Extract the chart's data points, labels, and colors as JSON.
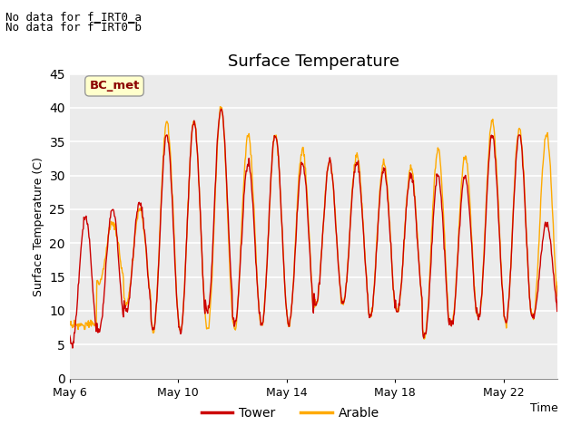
{
  "title": "Surface Temperature",
  "ylabel": "Surface Temperature (C)",
  "xlabel": "Time",
  "annotations": [
    "No data for f_IRT0_a",
    "No data for f̅IRT0̅b"
  ],
  "bc_met_label": "BC_met",
  "legend_entries": [
    "Tower",
    "Arable"
  ],
  "line_colors": [
    "#cc0000",
    "#ffaa00"
  ],
  "ylim": [
    0,
    45
  ],
  "x_tick_labels": [
    "May 6",
    "May 10",
    "May 14",
    "May 18",
    "May 22"
  ],
  "x_tick_positions": [
    0,
    4,
    8,
    12,
    16
  ],
  "plot_bg": "#ebebeb",
  "grid_color": "#ffffff",
  "title_fontsize": 13,
  "label_fontsize": 9,
  "tick_fontsize": 9,
  "annotation_fontsize": 9,
  "day_maxima_tower": [
    24,
    25,
    26,
    36,
    38,
    40,
    32,
    36,
    32,
    32,
    32,
    31,
    30,
    30,
    30,
    36,
    36,
    23,
    14
  ],
  "day_minima_tower": [
    5,
    7,
    10,
    7,
    7,
    10,
    8,
    8,
    8,
    11,
    11,
    9,
    10,
    6,
    8,
    9,
    8,
    9,
    14
  ],
  "day_maxima_arable": [
    8,
    23,
    25,
    38,
    38,
    40,
    36,
    36,
    34,
    32,
    33,
    32,
    31,
    34,
    33,
    38,
    37,
    36,
    14
  ],
  "day_minima_arable": [
    8,
    14,
    11,
    7,
    7,
    7,
    7,
    8,
    8,
    11,
    11,
    9,
    10,
    6,
    8,
    9,
    8,
    9,
    14
  ]
}
